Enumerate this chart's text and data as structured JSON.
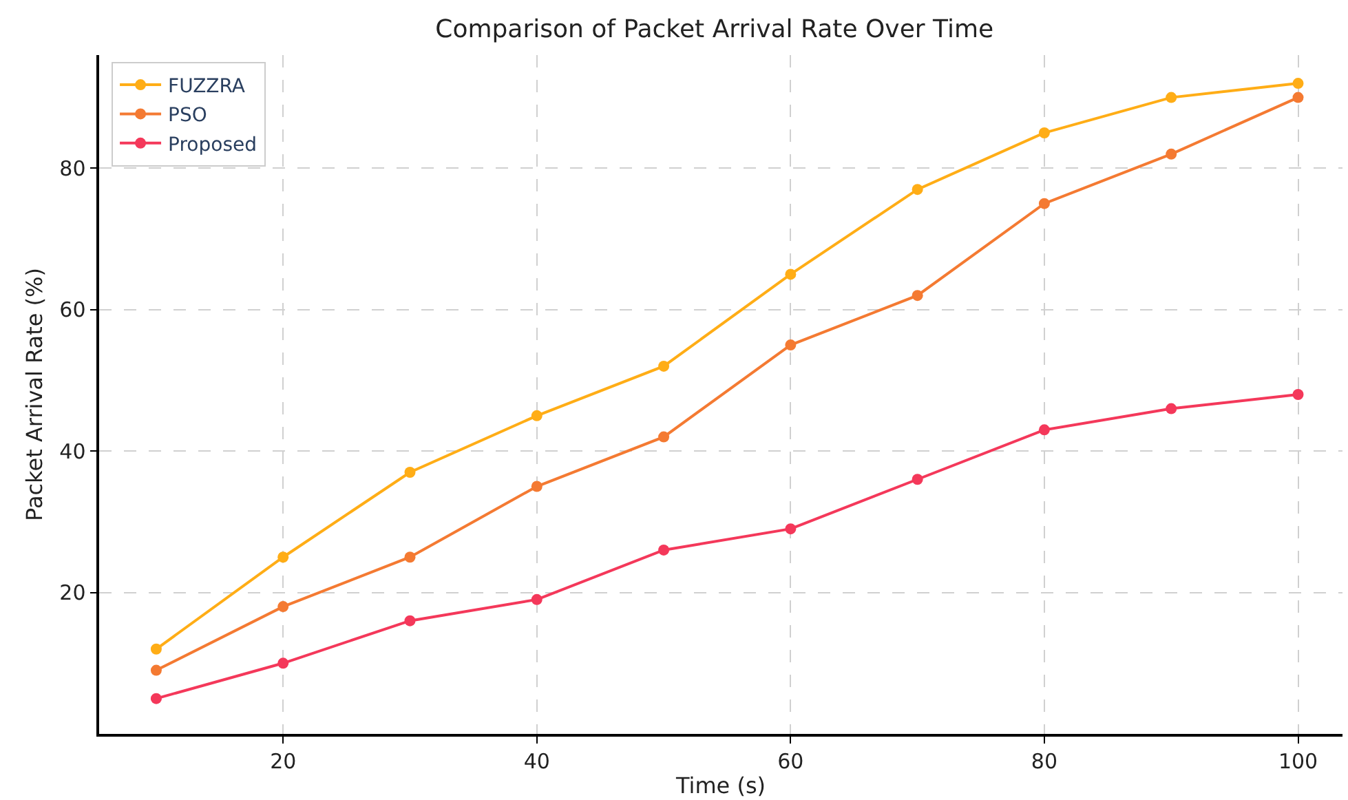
{
  "chart_data": {
    "type": "line",
    "title": "Comparison of Packet Arrival Rate Over Time",
    "xlabel": "Time (s)",
    "ylabel": "Packet Arrival Rate (%)",
    "x": [
      10,
      20,
      30,
      40,
      50,
      60,
      70,
      80,
      90,
      100
    ],
    "series": [
      {
        "name": "FUZZRA",
        "color": "#ffad16",
        "values": [
          12,
          25,
          37,
          45,
          52,
          65,
          77,
          85,
          90,
          92
        ]
      },
      {
        "name": "PSO",
        "color": "#f47a32",
        "values": [
          9,
          18,
          25,
          35,
          42,
          55,
          62,
          75,
          82,
          90
        ]
      },
      {
        "name": "Proposed",
        "color": "#f4385a",
        "values": [
          5,
          10,
          16,
          19,
          26,
          29,
          36,
          43,
          46,
          48
        ]
      }
    ],
    "xlim": [
      5.5,
      103.5
    ],
    "xticks": [
      20,
      40,
      60,
      80,
      100
    ],
    "ylim": [
      0,
      96
    ],
    "yticks": [
      20,
      40,
      60,
      80
    ],
    "grid": true,
    "legend": "top left",
    "marker": "circle",
    "line_style": "solid"
  }
}
